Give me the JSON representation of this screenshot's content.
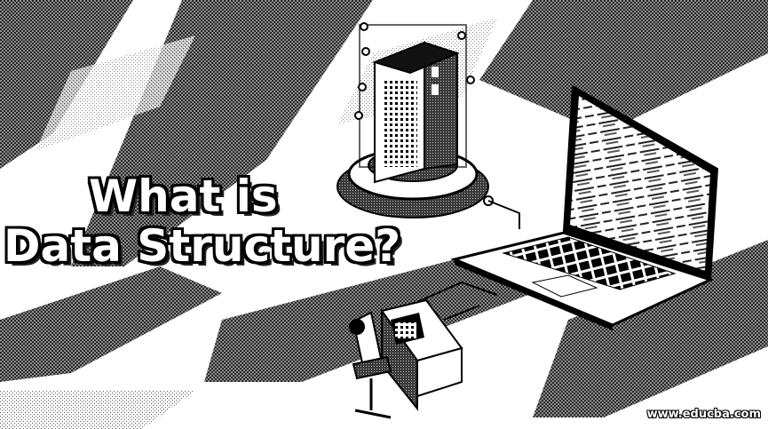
{
  "banner": {
    "title_line_1": "What is",
    "title_line_2": "Data Structure?",
    "watermark": "www.educba.com"
  },
  "illustration": {
    "icons": [
      "server-tower-icon",
      "laptop-icon",
      "desk-icon",
      "office-chair-icon"
    ],
    "colors": {
      "background": "#ffffff",
      "stripe": "#5a5a5a",
      "ink": "#000000",
      "text_fill": "#ffffff"
    }
  }
}
